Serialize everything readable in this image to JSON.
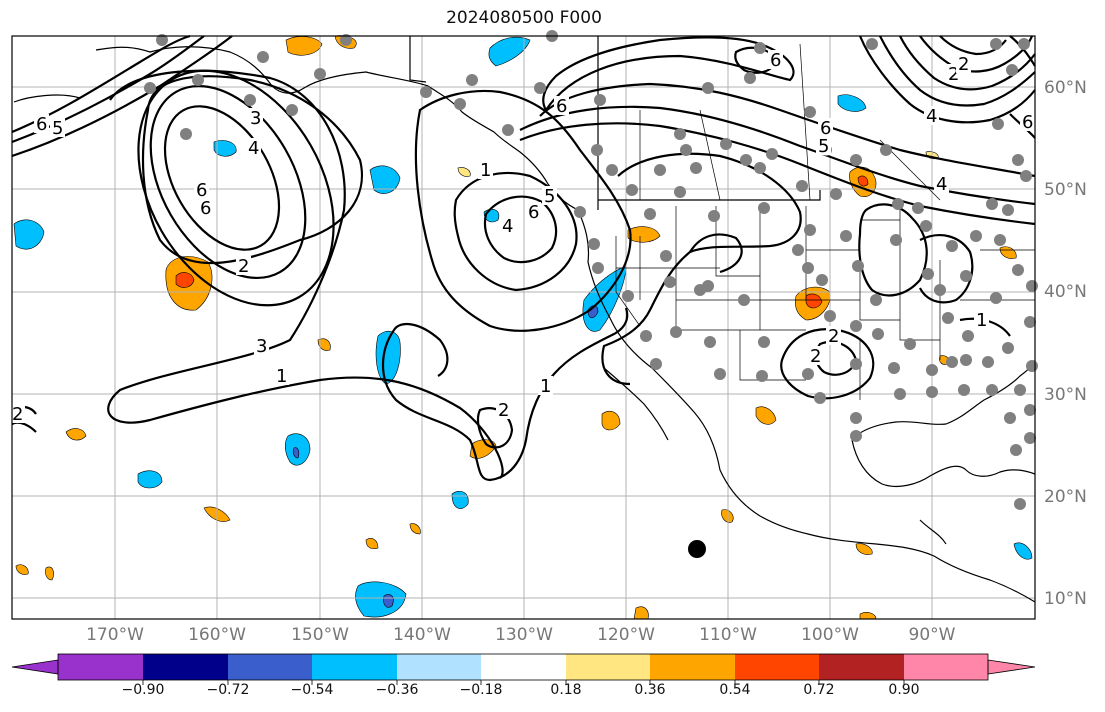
{
  "title": "2024080500 F000",
  "map": {
    "lon_labels": [
      "170°W",
      "160°W",
      "150°W",
      "140°W",
      "130°W",
      "120°W",
      "110°W",
      "100°W",
      "90°W"
    ],
    "lat_labels": [
      "60°N",
      "50°N",
      "40°N",
      "30°N",
      "20°N",
      "10°N"
    ],
    "contour_labels": [
      "6",
      "5",
      "3",
      "4",
      "6",
      "6",
      "2",
      "3",
      "1",
      "1",
      "2",
      "4",
      "5",
      "6",
      "6",
      "1",
      "2",
      "6",
      "5",
      "4",
      "2",
      "1",
      "2",
      "6",
      "4",
      "6",
      "2",
      "2"
    ],
    "gridlines": true
  },
  "colorbar": {
    "tick_labels": [
      "−0.90",
      "−0.72",
      "−0.54",
      "−0.36",
      "−0.18",
      "0.18",
      "0.36",
      "0.54",
      "0.72",
      "0.90"
    ],
    "colors": [
      "#9932cc",
      "#00008b",
      "#3a5fcd",
      "#00bfff",
      "#b0e2ff",
      "#ffffff",
      "#ffe680",
      "#ffa500",
      "#ff4500",
      "#b22222",
      "#ff86a8"
    ]
  }
}
